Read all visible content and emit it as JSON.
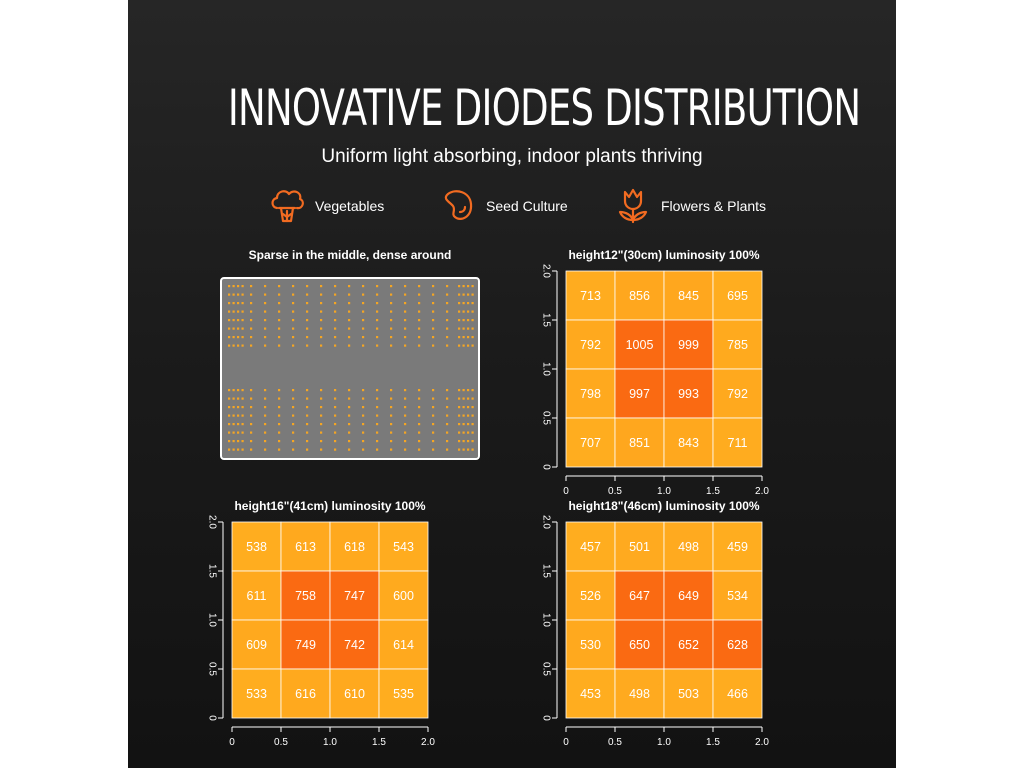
{
  "header": {
    "title": "INNOVATIVE DIODES DISTRIBUTION",
    "subtitle": "Uniform light absorbing, indoor plants thriving"
  },
  "features": [
    {
      "icon": "broccoli-icon",
      "label": "Vegetables"
    },
    {
      "icon": "bean-seed-icon",
      "label": "Seed Culture"
    },
    {
      "icon": "tulip-flower-icon",
      "label": "Flowers & Plants"
    }
  ],
  "diode_layout": {
    "title": "Sparse in the middle, dense around",
    "board_color": "#7a7a7a",
    "diode_color": "#f5a623"
  },
  "colors": {
    "accent": "#f26b21",
    "cell_low": "#ffad1f",
    "cell_high": "#fa6a12"
  },
  "chart_data": [
    {
      "type": "heatmap",
      "title": "height12\"(30cm)  luminosity 100%",
      "x_ticks": [
        "0",
        "0.5",
        "1.0",
        "1.5",
        "2.0"
      ],
      "y_ticks": [
        "0",
        "0.5",
        "1.0",
        "1.5",
        "2.0"
      ],
      "xlim": [
        0,
        2
      ],
      "ylim": [
        0,
        2
      ],
      "values": [
        [
          713,
          856,
          845,
          695
        ],
        [
          792,
          1005,
          999,
          785
        ],
        [
          798,
          997,
          993,
          792
        ],
        [
          707,
          851,
          843,
          711
        ]
      ]
    },
    {
      "type": "heatmap",
      "title": "height16\"(41cm)  luminosity 100%",
      "x_ticks": [
        "0",
        "0.5",
        "1.0",
        "1.5",
        "2.0"
      ],
      "y_ticks": [
        "0",
        "0.5",
        "1.0",
        "1.5",
        "2.0"
      ],
      "xlim": [
        0,
        2
      ],
      "ylim": [
        0,
        2
      ],
      "values": [
        [
          538,
          613,
          618,
          543
        ],
        [
          611,
          758,
          747,
          600
        ],
        [
          609,
          749,
          742,
          614
        ],
        [
          533,
          616,
          610,
          535
        ]
      ]
    },
    {
      "type": "heatmap",
      "title": "height18\"(46cm)  luminosity 100%",
      "x_ticks": [
        "0",
        "0.5",
        "1.0",
        "1.5",
        "2.0"
      ],
      "y_ticks": [
        "0",
        "0.5",
        "1.0",
        "1.5",
        "2.0"
      ],
      "xlim": [
        0,
        2
      ],
      "ylim": [
        0,
        2
      ],
      "values": [
        [
          457,
          501,
          498,
          459
        ],
        [
          526,
          647,
          649,
          534
        ],
        [
          530,
          650,
          652,
          628
        ],
        [
          453,
          498,
          503,
          466
        ]
      ]
    }
  ]
}
